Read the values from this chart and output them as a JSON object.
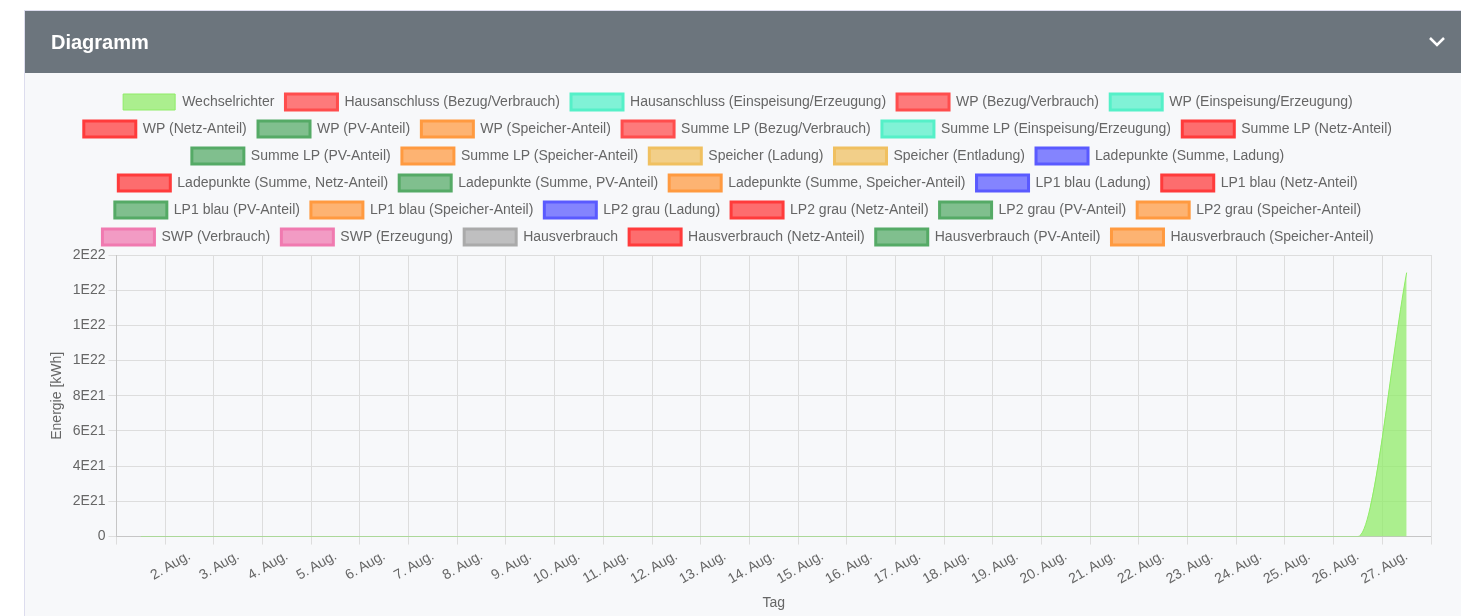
{
  "chart_data": {
    "type": "area",
    "title": "Diagramm",
    "xlabel": "Tag",
    "ylabel": "Energie [kWh]",
    "categories": [
      null,
      "2. Aug.",
      "3. Aug.",
      "4. Aug.",
      "5. Aug.",
      "6. Aug.",
      "7. Aug.",
      "8. Aug.",
      "9. Aug.",
      "10. Aug.",
      "11. Aug.",
      "12. Aug.",
      "13. Aug.",
      "14. Aug.",
      "15. Aug.",
      "16. Aug.",
      "17. Aug.",
      "18. Aug.",
      "19. Aug.",
      "20. Aug.",
      "21. Aug.",
      "22. Aug.",
      "23. Aug.",
      "24. Aug.",
      "25. Aug.",
      "26. Aug.",
      "27. Aug."
    ],
    "ylim": [
      0,
      1.6e+22
    ],
    "yticks": [
      0,
      {
        "value": 2e+21,
        "label": "2E21"
      },
      {
        "value": 4e+21,
        "label": "4E21"
      },
      {
        "value": 6e+21,
        "label": "6E21"
      },
      {
        "value": 8e+21,
        "label": "8E21"
      },
      {
        "value": 1e+22,
        "label": "1E22"
      },
      {
        "value": 1.2e+22,
        "label": "1E22"
      },
      {
        "value": 1.4e+22,
        "label": "1E22"
      },
      {
        "value": 1.6e+22,
        "label": "2E22"
      }
    ],
    "grid": true,
    "legend": "top",
    "series": [
      {
        "name": "Wechselrichter",
        "color": "#8fec66",
        "values": [
          0,
          0,
          0,
          0,
          0,
          0,
          0,
          0,
          0,
          0,
          0,
          0,
          0,
          0,
          0,
          0,
          0,
          0,
          0,
          0,
          0,
          0,
          0,
          0,
          0,
          0,
          1.5e+22
        ]
      },
      {
        "name": "Hausanschluss (Bezug/Verbrauch)",
        "color": "#ff4d4d",
        "values": [
          null,
          null,
          null,
          null,
          null,
          null,
          null,
          null,
          null,
          null,
          null,
          null,
          null,
          null,
          null,
          null,
          null,
          null,
          null,
          null,
          null,
          null,
          null,
          null,
          null,
          null,
          null
        ]
      },
      {
        "name": "Hausanschluss (Einspeisung/Erzeugung)",
        "color": "#55f0c8",
        "values": [
          null,
          null,
          null,
          null,
          null,
          null,
          null,
          null,
          null,
          null,
          null,
          null,
          null,
          null,
          null,
          null,
          null,
          null,
          null,
          null,
          null,
          null,
          null,
          null,
          null,
          null,
          null
        ]
      },
      {
        "name": "WP (Bezug/Verbrauch)",
        "color": "#ff4d4d",
        "values": [
          null,
          null,
          null,
          null,
          null,
          null,
          null,
          null,
          null,
          null,
          null,
          null,
          null,
          null,
          null,
          null,
          null,
          null,
          null,
          null,
          null,
          null,
          null,
          null,
          null,
          null,
          null
        ]
      },
      {
        "name": "WP (Einspeisung/Erzeugung)",
        "color": "#55f0c8",
        "values": [
          null,
          null,
          null,
          null,
          null,
          null,
          null,
          null,
          null,
          null,
          null,
          null,
          null,
          null,
          null,
          null,
          null,
          null,
          null,
          null,
          null,
          null,
          null,
          null,
          null,
          null,
          null
        ]
      },
      {
        "name": "WP (Netz-Anteil)",
        "color": "#ff3b3b",
        "values": [
          null,
          null,
          null,
          null,
          null,
          null,
          null,
          null,
          null,
          null,
          null,
          null,
          null,
          null,
          null,
          null,
          null,
          null,
          null,
          null,
          null,
          null,
          null,
          null,
          null,
          null,
          null
        ]
      },
      {
        "name": "WP (PV-Anteil)",
        "color": "#55aa66",
        "values": [
          null,
          null,
          null,
          null,
          null,
          null,
          null,
          null,
          null,
          null,
          null,
          null,
          null,
          null,
          null,
          null,
          null,
          null,
          null,
          null,
          null,
          null,
          null,
          null,
          null,
          null,
          null
        ]
      },
      {
        "name": "WP (Speicher-Anteil)",
        "color": "#ff9a40",
        "values": [
          null,
          null,
          null,
          null,
          null,
          null,
          null,
          null,
          null,
          null,
          null,
          null,
          null,
          null,
          null,
          null,
          null,
          null,
          null,
          null,
          null,
          null,
          null,
          null,
          null,
          null,
          null
        ]
      },
      {
        "name": "Summe LP (Bezug/Verbrauch)",
        "color": "#ff4d4d",
        "values": [
          null,
          null,
          null,
          null,
          null,
          null,
          null,
          null,
          null,
          null,
          null,
          null,
          null,
          null,
          null,
          null,
          null,
          null,
          null,
          null,
          null,
          null,
          null,
          null,
          null,
          null,
          null
        ]
      },
      {
        "name": "Summe LP (Einspeisung/Erzeugung)",
        "color": "#55f0c8",
        "values": [
          null,
          null,
          null,
          null,
          null,
          null,
          null,
          null,
          null,
          null,
          null,
          null,
          null,
          null,
          null,
          null,
          null,
          null,
          null,
          null,
          null,
          null,
          null,
          null,
          null,
          null,
          null
        ]
      },
      {
        "name": "Summe LP (Netz-Anteil)",
        "color": "#ff3b3b",
        "values": [
          null,
          null,
          null,
          null,
          null,
          null,
          null,
          null,
          null,
          null,
          null,
          null,
          null,
          null,
          null,
          null,
          null,
          null,
          null,
          null,
          null,
          null,
          null,
          null,
          null,
          null,
          null
        ]
      },
      {
        "name": "Summe LP (PV-Anteil)",
        "color": "#55aa66",
        "values": [
          null,
          null,
          null,
          null,
          null,
          null,
          null,
          null,
          null,
          null,
          null,
          null,
          null,
          null,
          null,
          null,
          null,
          null,
          null,
          null,
          null,
          null,
          null,
          null,
          null,
          null,
          null
        ]
      },
      {
        "name": "Summe LP (Speicher-Anteil)",
        "color": "#ff9a40",
        "values": [
          null,
          null,
          null,
          null,
          null,
          null,
          null,
          null,
          null,
          null,
          null,
          null,
          null,
          null,
          null,
          null,
          null,
          null,
          null,
          null,
          null,
          null,
          null,
          null,
          null,
          null,
          null
        ]
      },
      {
        "name": "Speicher (Ladung)",
        "color": "#f0c060",
        "values": [
          null,
          null,
          null,
          null,
          null,
          null,
          null,
          null,
          null,
          null,
          null,
          null,
          null,
          null,
          null,
          null,
          null,
          null,
          null,
          null,
          null,
          null,
          null,
          null,
          null,
          null,
          null
        ]
      },
      {
        "name": "Speicher (Entladung)",
        "color": "#f0c060",
        "values": [
          null,
          null,
          null,
          null,
          null,
          null,
          null,
          null,
          null,
          null,
          null,
          null,
          null,
          null,
          null,
          null,
          null,
          null,
          null,
          null,
          null,
          null,
          null,
          null,
          null,
          null,
          null
        ]
      },
      {
        "name": "Ladepunkte (Summe, Ladung)",
        "color": "#5a5aff",
        "values": [
          null,
          null,
          null,
          null,
          null,
          null,
          null,
          null,
          null,
          null,
          null,
          null,
          null,
          null,
          null,
          null,
          null,
          null,
          null,
          null,
          null,
          null,
          null,
          null,
          null,
          null,
          null
        ]
      },
      {
        "name": "Ladepunkte (Summe, Netz-Anteil)",
        "color": "#ff3b3b",
        "values": [
          null,
          null,
          null,
          null,
          null,
          null,
          null,
          null,
          null,
          null,
          null,
          null,
          null,
          null,
          null,
          null,
          null,
          null,
          null,
          null,
          null,
          null,
          null,
          null,
          null,
          null,
          null
        ]
      },
      {
        "name": "Ladepunkte (Summe, PV-Anteil)",
        "color": "#55aa66",
        "values": [
          null,
          null,
          null,
          null,
          null,
          null,
          null,
          null,
          null,
          null,
          null,
          null,
          null,
          null,
          null,
          null,
          null,
          null,
          null,
          null,
          null,
          null,
          null,
          null,
          null,
          null,
          null
        ]
      },
      {
        "name": "Ladepunkte (Summe, Speicher-Anteil)",
        "color": "#ff9a40",
        "values": [
          null,
          null,
          null,
          null,
          null,
          null,
          null,
          null,
          null,
          null,
          null,
          null,
          null,
          null,
          null,
          null,
          null,
          null,
          null,
          null,
          null,
          null,
          null,
          null,
          null,
          null,
          null
        ]
      },
      {
        "name": "LP1 blau (Ladung)",
        "color": "#5a5aff",
        "values": [
          null,
          null,
          null,
          null,
          null,
          null,
          null,
          null,
          null,
          null,
          null,
          null,
          null,
          null,
          null,
          null,
          null,
          null,
          null,
          null,
          null,
          null,
          null,
          null,
          null,
          null,
          null
        ]
      },
      {
        "name": "LP1 blau (Netz-Anteil)",
        "color": "#ff3b3b",
        "values": [
          null,
          null,
          null,
          null,
          null,
          null,
          null,
          null,
          null,
          null,
          null,
          null,
          null,
          null,
          null,
          null,
          null,
          null,
          null,
          null,
          null,
          null,
          null,
          null,
          null,
          null,
          null
        ]
      },
      {
        "name": "LP1 blau (PV-Anteil)",
        "color": "#55aa66",
        "values": [
          null,
          null,
          null,
          null,
          null,
          null,
          null,
          null,
          null,
          null,
          null,
          null,
          null,
          null,
          null,
          null,
          null,
          null,
          null,
          null,
          null,
          null,
          null,
          null,
          null,
          null,
          null
        ]
      },
      {
        "name": "LP1 blau (Speicher-Anteil)",
        "color": "#ff9a40",
        "values": [
          null,
          null,
          null,
          null,
          null,
          null,
          null,
          null,
          null,
          null,
          null,
          null,
          null,
          null,
          null,
          null,
          null,
          null,
          null,
          null,
          null,
          null,
          null,
          null,
          null,
          null,
          null
        ]
      },
      {
        "name": "LP2 grau (Ladung)",
        "color": "#5a5aff",
        "values": [
          null,
          null,
          null,
          null,
          null,
          null,
          null,
          null,
          null,
          null,
          null,
          null,
          null,
          null,
          null,
          null,
          null,
          null,
          null,
          null,
          null,
          null,
          null,
          null,
          null,
          null,
          null
        ]
      },
      {
        "name": "LP2 grau (Netz-Anteil)",
        "color": "#ff3b3b",
        "values": [
          null,
          null,
          null,
          null,
          null,
          null,
          null,
          null,
          null,
          null,
          null,
          null,
          null,
          null,
          null,
          null,
          null,
          null,
          null,
          null,
          null,
          null,
          null,
          null,
          null,
          null,
          null
        ]
      },
      {
        "name": "LP2 grau (PV-Anteil)",
        "color": "#55aa66",
        "values": [
          null,
          null,
          null,
          null,
          null,
          null,
          null,
          null,
          null,
          null,
          null,
          null,
          null,
          null,
          null,
          null,
          null,
          null,
          null,
          null,
          null,
          null,
          null,
          null,
          null,
          null,
          null
        ]
      },
      {
        "name": "LP2 grau (Speicher-Anteil)",
        "color": "#ff9a40",
        "values": [
          null,
          null,
          null,
          null,
          null,
          null,
          null,
          null,
          null,
          null,
          null,
          null,
          null,
          null,
          null,
          null,
          null,
          null,
          null,
          null,
          null,
          null,
          null,
          null,
          null,
          null,
          null
        ]
      },
      {
        "name": "SWP (Verbrauch)",
        "color": "#f07ab0",
        "values": [
          null,
          null,
          null,
          null,
          null,
          null,
          null,
          null,
          null,
          null,
          null,
          null,
          null,
          null,
          null,
          null,
          null,
          null,
          null,
          null,
          null,
          null,
          null,
          null,
          null,
          null,
          null
        ]
      },
      {
        "name": "SWP (Erzeugung)",
        "color": "#f07ab0",
        "values": [
          null,
          null,
          null,
          null,
          null,
          null,
          null,
          null,
          null,
          null,
          null,
          null,
          null,
          null,
          null,
          null,
          null,
          null,
          null,
          null,
          null,
          null,
          null,
          null,
          null,
          null,
          null
        ]
      },
      {
        "name": "Hausverbrauch",
        "color": "#aaaaaa",
        "values": [
          null,
          null,
          null,
          null,
          null,
          null,
          null,
          null,
          null,
          null,
          null,
          null,
          null,
          null,
          null,
          null,
          null,
          null,
          null,
          null,
          null,
          null,
          null,
          null,
          null,
          null,
          null
        ]
      },
      {
        "name": "Hausverbrauch (Netz-Anteil)",
        "color": "#ff3b3b",
        "values": [
          null,
          null,
          null,
          null,
          null,
          null,
          null,
          null,
          null,
          null,
          null,
          null,
          null,
          null,
          null,
          null,
          null,
          null,
          null,
          null,
          null,
          null,
          null,
          null,
          null,
          null,
          null
        ]
      },
      {
        "name": "Hausverbrauch (PV-Anteil)",
        "color": "#55aa66",
        "values": [
          null,
          null,
          null,
          null,
          null,
          null,
          null,
          null,
          null,
          null,
          null,
          null,
          null,
          null,
          null,
          null,
          null,
          null,
          null,
          null,
          null,
          null,
          null,
          null,
          null,
          null,
          null
        ]
      },
      {
        "name": "Hausverbrauch (Speicher-Anteil)",
        "color": "#ff9a40",
        "values": [
          null,
          null,
          null,
          null,
          null,
          null,
          null,
          null,
          null,
          null,
          null,
          null,
          null,
          null,
          null,
          null,
          null,
          null,
          null,
          null,
          null,
          null,
          null,
          null,
          null,
          null,
          null
        ]
      }
    ]
  }
}
